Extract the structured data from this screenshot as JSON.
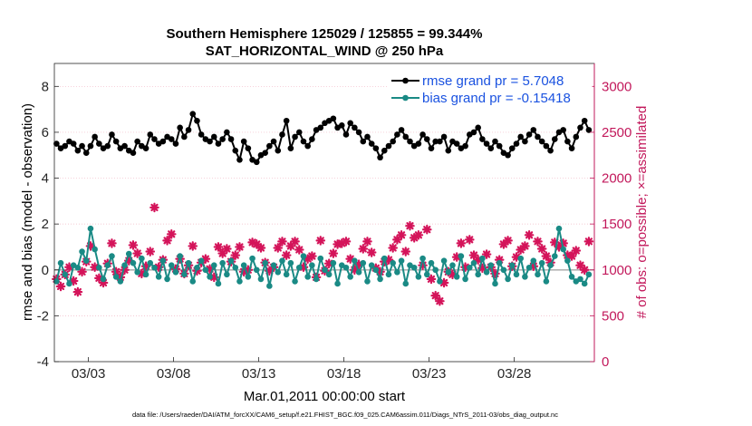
{
  "chart_data": {
    "type": "line",
    "title_line1": "Southern Hemisphere 125029 / 125855 = 99.344%",
    "title_line2": "SAT_HORIZONTAL_WIND @ 250 hPa",
    "ylabel_left": "rmse and bias (model - observation)",
    "ylabel_right": "# of obs: o=possible; ×=assimilated",
    "xlabel": "Mar.01,2011 00:00:00 start",
    "footnote": "data file: /Users/raeder/DAI/ATM_forcXX/CAM6_setup/f.e21.FHIST_BGC.f09_025.CAM6assim.011/Diags_NTrS_2011-03/obs_diag_output.nc",
    "xlim": [
      1.5,
      33.2
    ],
    "ylim_left": [
      -4,
      9
    ],
    "ylim_right": [
      0,
      3250
    ],
    "left_ticks": [
      -4,
      -2,
      0,
      2,
      4,
      6,
      8
    ],
    "right_ticks": [
      0,
      500,
      1000,
      1500,
      2000,
      2500,
      3000
    ],
    "x_ticks": [
      {
        "label": "03/03",
        "value": 3.5
      },
      {
        "label": "03/08",
        "value": 8.5
      },
      {
        "label": "03/13",
        "value": 13.5
      },
      {
        "label": "03/18",
        "value": 18.5
      },
      {
        "label": "03/23",
        "value": 23.5
      },
      {
        "label": "03/28",
        "value": 28.5
      }
    ],
    "colors": {
      "rmse": "#000000",
      "bias": "#1a8a85",
      "obs": "#d4145a",
      "legend_text": "#1a52e0",
      "right_axis": "#c2185b",
      "zero_line": "#b3b3b3",
      "red_grid": "#f2b8c6"
    },
    "legend": [
      {
        "label": "rmse grand pr = 5.7048",
        "series": "rmse"
      },
      {
        "label": "bias grand pr = -0.15418",
        "series": "bias"
      }
    ],
    "x": [
      1.625,
      1.875,
      2.125,
      2.375,
      2.625,
      2.875,
      3.125,
      3.375,
      3.625,
      3.875,
      4.125,
      4.375,
      4.625,
      4.875,
      5.125,
      5.375,
      5.625,
      5.875,
      6.125,
      6.375,
      6.625,
      6.875,
      7.125,
      7.375,
      7.625,
      7.875,
      8.125,
      8.375,
      8.625,
      8.875,
      9.125,
      9.375,
      9.625,
      9.875,
      10.125,
      10.375,
      10.625,
      10.875,
      11.125,
      11.375,
      11.625,
      11.875,
      12.125,
      12.375,
      12.625,
      12.875,
      13.125,
      13.375,
      13.625,
      13.875,
      14.125,
      14.375,
      14.625,
      14.875,
      15.125,
      15.375,
      15.625,
      15.875,
      16.125,
      16.375,
      16.625,
      16.875,
      17.125,
      17.375,
      17.625,
      17.875,
      18.125,
      18.375,
      18.625,
      18.875,
      19.125,
      19.375,
      19.625,
      19.875,
      20.125,
      20.375,
      20.625,
      20.875,
      21.125,
      21.375,
      21.625,
      21.875,
      22.125,
      22.375,
      22.625,
      22.875,
      23.125,
      23.375,
      23.625,
      23.875,
      24.125,
      24.375,
      24.625,
      24.875,
      25.125,
      25.375,
      25.625,
      25.875,
      26.125,
      26.375,
      26.625,
      26.875,
      27.125,
      27.375,
      27.625,
      27.875,
      28.125,
      28.375,
      28.625,
      28.875,
      29.125,
      29.375,
      29.625,
      29.875,
      30.125,
      30.375,
      30.625,
      30.875,
      31.125,
      31.375,
      31.625,
      31.875,
      32.125,
      32.375,
      32.625,
      32.875
    ],
    "rmse": [
      5.5,
      5.3,
      5.4,
      5.6,
      5.5,
      5.2,
      5.4,
      5.1,
      5.4,
      5.8,
      5.5,
      5.3,
      5.4,
      5.9,
      5.6,
      5.3,
      5.4,
      5.2,
      5.1,
      5.6,
      5.4,
      5.3,
      5.9,
      5.7,
      5.5,
      5.6,
      5.8,
      5.7,
      5.5,
      6.2,
      5.8,
      6.1,
      6.8,
      6.5,
      5.9,
      5.7,
      5.6,
      5.8,
      5.5,
      5.7,
      6.0,
      5.7,
      5.2,
      4.8,
      5.6,
      5.3,
      4.8,
      4.7,
      5.0,
      5.1,
      5.4,
      5.6,
      5.2,
      5.9,
      6.5,
      5.3,
      5.8,
      6.0,
      5.6,
      5.4,
      5.7,
      6.1,
      6.2,
      6.4,
      6.5,
      6.6,
      6.2,
      6.3,
      5.9,
      6.4,
      6.2,
      6.0,
      5.6,
      5.8,
      5.5,
      5.3,
      4.9,
      5.2,
      5.4,
      5.6,
      5.9,
      6.1,
      5.8,
      5.6,
      5.4,
      5.5,
      5.9,
      5.7,
      5.3,
      5.6,
      5.6,
      5.8,
      5.2,
      5.6,
      5.5,
      5.3,
      5.4,
      5.9,
      6.0,
      6.2,
      5.7,
      5.5,
      5.3,
      5.6,
      5.4,
      5.1,
      5.0,
      5.3,
      5.5,
      5.8,
      5.6,
      5.9,
      6.1,
      5.8,
      5.6,
      5.4,
      5.2,
      5.7,
      6.0,
      6.1,
      5.6,
      5.3,
      5.8,
      6.2,
      6.5,
      6.1
    ],
    "bias": [
      -0.5,
      0.3,
      -0.2,
      -0.6,
      0.2,
      0.1,
      0.8,
      0.4,
      1.8,
      0.9,
      0.1,
      -0.4,
      0.2,
      0.6,
      -0.3,
      -0.5,
      0.2,
      0.7,
      0.3,
      -0.1,
      0.5,
      -0.2,
      0.3,
      0.1,
      -0.3,
      0.4,
      -0.4,
      0.2,
      -0.1,
      0.6,
      -0.2,
      0.3,
      -0.5,
      0.1,
      0.4,
      0.0,
      -0.3,
      0.2,
      -0.6,
      0.3,
      -0.2,
      0.4,
      0.1,
      -0.5,
      0.2,
      -0.3,
      0.5,
      0.0,
      -0.4,
      0.3,
      -0.7,
      0.2,
      -0.1,
      0.4,
      -0.2,
      0.3,
      -0.5,
      0.1,
      0.6,
      -0.3,
      0.2,
      -0.4,
      0.5,
      0.0,
      -0.2,
      0.3,
      -0.6,
      0.2,
      0.1,
      -0.3,
      0.4,
      -0.1,
      0.3,
      -0.5,
      0.2,
      0.0,
      -0.4,
      0.5,
      -0.2,
      0.3,
      -0.1,
      0.4,
      -0.6,
      0.2,
      0.1,
      -0.3,
      0.5,
      -0.2,
      0.3,
      0.0,
      -0.5,
      0.4,
      -0.1,
      0.2,
      -0.3,
      0.6,
      -0.4,
      0.1,
      0.3,
      -0.2,
      0.5,
      -0.1,
      0.2,
      -0.6,
      0.3,
      0.0,
      -0.4,
      0.2,
      -0.2,
      0.5,
      -0.3,
      0.1,
      0.4,
      -0.2,
      0.3,
      -0.5,
      0.2,
      0.6,
      1.8,
      0.9,
      0.4,
      -0.3,
      -0.5,
      -0.4,
      -0.6,
      -0.2
    ],
    "obs_assimilated": [
      900,
      820,
      950,
      1030,
      880,
      760,
      980,
      1090,
      1260,
      1030,
      910,
      860,
      1070,
      1290,
      980,
      920,
      1000,
      1100,
      1270,
      1180,
      960,
      1040,
      1200,
      1680,
      1030,
      1110,
      1320,
      1390,
      1010,
      1120,
      960,
      1050,
      1260,
      990,
      1080,
      1120,
      1010,
      920,
      1250,
      1180,
      1230,
      1090,
      1160,
      1250,
      980,
      1000,
      1300,
      1280,
      1240,
      1080,
      990,
      1030,
      1240,
      1310,
      1160,
      1260,
      1310,
      1220,
      1030,
      1120,
      1150,
      920,
      1320,
      990,
      1070,
      1180,
      1280,
      1290,
      1310,
      1120,
      1000,
      1060,
      1230,
      1310,
      1190,
      1020,
      980,
      1090,
      1110,
      1240,
      1330,
      1380,
      1200,
      1480,
      1350,
      1380,
      1050,
      1440,
      900,
      720,
      660,
      860,
      980,
      950,
      1140,
      1290,
      1030,
      1330,
      1160,
      1110,
      1020,
      1170,
      1030,
      960,
      1110,
      1280,
      1320,
      1040,
      1140,
      1220,
      1260,
      1380,
      1040,
      1310,
      1230,
      1150,
      1080,
      1300,
      1250,
      1290,
      1160,
      1150,
      1210,
      1050,
      1000,
      1310
    ]
  }
}
